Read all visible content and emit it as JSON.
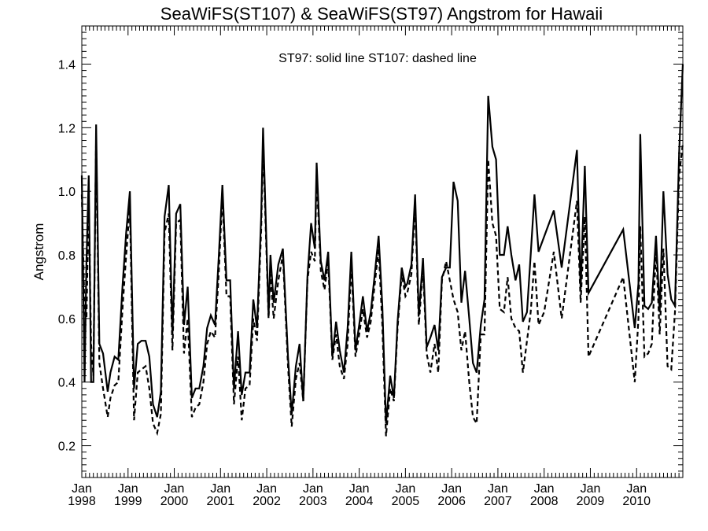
{
  "chart_data": {
    "type": "line",
    "title": "SeaWiFS(ST107) & SeaWiFS(ST97)  Angstrom for Hawaii",
    "annotation": "ST97: solid line   ST107: dashed line",
    "ylabel": "Angstrom",
    "xlabel": "",
    "xlim": [
      1998.0,
      2011.0
    ],
    "ylim": [
      0.1,
      1.52
    ],
    "yticks": [
      "0.2",
      "0.4",
      "0.6",
      "0.8",
      "1.0",
      "1.2",
      "1.4"
    ],
    "xticks": [
      {
        "top": "Jan",
        "bottom": "1998"
      },
      {
        "top": "Jan",
        "bottom": "1999"
      },
      {
        "top": "Jan",
        "bottom": "2000"
      },
      {
        "top": "Jan",
        "bottom": "2001"
      },
      {
        "top": "Jan",
        "bottom": "2002"
      },
      {
        "top": "Jan",
        "bottom": "2003"
      },
      {
        "top": "Jan",
        "bottom": "2004"
      },
      {
        "top": "Jan",
        "bottom": "2005"
      },
      {
        "top": "Jan",
        "bottom": "2006"
      },
      {
        "top": "Jan",
        "bottom": "2007"
      },
      {
        "top": "Jan",
        "bottom": "2008"
      },
      {
        "top": "Jan",
        "bottom": "2009"
      },
      {
        "top": "Jan",
        "bottom": "2010"
      }
    ],
    "grid": false,
    "series": [
      {
        "name": "ST97",
        "style": "solid",
        "color": "#000000",
        "points": [
          [
            1998.0,
            1.05
          ],
          [
            1998.06,
            0.4
          ],
          [
            1998.1,
            0.78
          ],
          [
            1998.15,
            1.05
          ],
          [
            1998.2,
            0.4
          ],
          [
            1998.25,
            0.4
          ],
          [
            1998.31,
            1.21
          ],
          [
            1998.38,
            0.52
          ],
          [
            1998.46,
            0.49
          ],
          [
            1998.56,
            0.37
          ],
          [
            1998.62,
            0.43
          ],
          [
            1998.71,
            0.48
          ],
          [
            1998.79,
            0.47
          ],
          [
            1998.88,
            0.7
          ],
          [
            1998.96,
            0.87
          ],
          [
            1999.04,
            1.0
          ],
          [
            1999.13,
            0.38
          ],
          [
            1999.21,
            0.52
          ],
          [
            1999.29,
            0.53
          ],
          [
            1999.38,
            0.53
          ],
          [
            1999.46,
            0.48
          ],
          [
            1999.54,
            0.33
          ],
          [
            1999.63,
            0.29
          ],
          [
            1999.71,
            0.37
          ],
          [
            1999.79,
            0.92
          ],
          [
            1999.88,
            1.02
          ],
          [
            1999.96,
            0.55
          ],
          [
            2000.04,
            0.93
          ],
          [
            2000.13,
            0.96
          ],
          [
            2000.21,
            0.58
          ],
          [
            2000.29,
            0.7
          ],
          [
            2000.38,
            0.35
          ],
          [
            2000.46,
            0.38
          ],
          [
            2000.54,
            0.38
          ],
          [
            2000.63,
            0.45
          ],
          [
            2000.71,
            0.57
          ],
          [
            2000.79,
            0.61
          ],
          [
            2000.88,
            0.58
          ],
          [
            2000.96,
            0.79
          ],
          [
            2001.04,
            1.02
          ],
          [
            2001.13,
            0.72
          ],
          [
            2001.21,
            0.72
          ],
          [
            2001.29,
            0.38
          ],
          [
            2001.38,
            0.56
          ],
          [
            2001.46,
            0.36
          ],
          [
            2001.54,
            0.43
          ],
          [
            2001.63,
            0.43
          ],
          [
            2001.71,
            0.66
          ],
          [
            2001.79,
            0.57
          ],
          [
            2001.88,
            0.92
          ],
          [
            2001.92,
            1.2
          ],
          [
            2002.04,
            0.61
          ],
          [
            2002.08,
            0.8
          ],
          [
            2002.15,
            0.65
          ],
          [
            2002.25,
            0.77
          ],
          [
            2002.35,
            0.82
          ],
          [
            2002.46,
            0.48
          ],
          [
            2002.54,
            0.3
          ],
          [
            2002.63,
            0.45
          ],
          [
            2002.71,
            0.52
          ],
          [
            2002.79,
            0.34
          ],
          [
            2002.88,
            0.73
          ],
          [
            2002.96,
            0.9
          ],
          [
            2003.04,
            0.82
          ],
          [
            2003.08,
            1.09
          ],
          [
            2003.17,
            0.78
          ],
          [
            2003.25,
            0.72
          ],
          [
            2003.33,
            0.81
          ],
          [
            2003.42,
            0.48
          ],
          [
            2003.5,
            0.59
          ],
          [
            2003.58,
            0.5
          ],
          [
            2003.67,
            0.43
          ],
          [
            2003.75,
            0.57
          ],
          [
            2003.83,
            0.81
          ],
          [
            2003.92,
            0.5
          ],
          [
            2004.0,
            0.58
          ],
          [
            2004.08,
            0.67
          ],
          [
            2004.17,
            0.56
          ],
          [
            2004.25,
            0.62
          ],
          [
            2004.33,
            0.73
          ],
          [
            2004.42,
            0.86
          ],
          [
            2004.5,
            0.64
          ],
          [
            2004.58,
            0.27
          ],
          [
            2004.67,
            0.42
          ],
          [
            2004.75,
            0.35
          ],
          [
            2004.83,
            0.59
          ],
          [
            2004.92,
            0.76
          ],
          [
            2005.0,
            0.7
          ],
          [
            2005.04,
            0.71
          ],
          [
            2005.13,
            0.77
          ],
          [
            2005.21,
            0.99
          ],
          [
            2005.29,
            0.61
          ],
          [
            2005.38,
            0.79
          ],
          [
            2005.46,
            0.51
          ],
          [
            2005.54,
            0.54
          ],
          [
            2005.63,
            0.58
          ],
          [
            2005.71,
            0.5
          ],
          [
            2005.79,
            0.73
          ],
          [
            2005.88,
            0.76
          ],
          [
            2005.96,
            0.76
          ],
          [
            2006.04,
            1.03
          ],
          [
            2006.13,
            0.97
          ],
          [
            2006.21,
            0.65
          ],
          [
            2006.29,
            0.75
          ],
          [
            2006.38,
            0.6
          ],
          [
            2006.46,
            0.46
          ],
          [
            2006.54,
            0.43
          ],
          [
            2006.63,
            0.58
          ],
          [
            2006.71,
            0.66
          ],
          [
            2006.79,
            1.3
          ],
          [
            2006.88,
            1.14
          ],
          [
            2006.96,
            1.1
          ],
          [
            2007.04,
            0.8
          ],
          [
            2007.13,
            0.8
          ],
          [
            2007.21,
            0.89
          ],
          [
            2007.29,
            0.8
          ],
          [
            2007.38,
            0.72
          ],
          [
            2007.46,
            0.77
          ],
          [
            2007.54,
            0.59
          ],
          [
            2007.63,
            0.62
          ],
          [
            2007.71,
            0.8
          ],
          [
            2007.79,
            0.99
          ],
          [
            2007.88,
            0.81
          ],
          [
            2008.21,
            0.94
          ],
          [
            2008.38,
            0.76
          ],
          [
            2008.71,
            1.13
          ],
          [
            2008.79,
            0.69
          ],
          [
            2008.88,
            1.08
          ],
          [
            2008.96,
            0.68
          ],
          [
            2009.71,
            0.88
          ],
          [
            2009.96,
            0.57
          ],
          [
            2010.04,
            0.71
          ],
          [
            2010.08,
            1.18
          ],
          [
            2010.17,
            0.64
          ],
          [
            2010.25,
            0.63
          ],
          [
            2010.33,
            0.65
          ],
          [
            2010.42,
            0.86
          ],
          [
            2010.5,
            0.62
          ],
          [
            2010.58,
            1.0
          ],
          [
            2010.67,
            0.74
          ],
          [
            2010.75,
            0.66
          ],
          [
            2010.83,
            0.64
          ],
          [
            2010.92,
            1.12
          ],
          [
            2011.0,
            1.4
          ]
        ]
      },
      {
        "name": "ST107",
        "style": "dashed",
        "color": "#000000",
        "points": [
          [
            1998.0,
            0.99
          ],
          [
            1998.06,
            0.62
          ],
          [
            1998.1,
            0.6
          ],
          [
            1998.15,
            0.97
          ],
          [
            1998.2,
            0.52
          ],
          [
            1998.25,
            0.42
          ],
          [
            1998.31,
            1.17
          ],
          [
            1998.38,
            0.46
          ],
          [
            1998.46,
            0.38
          ],
          [
            1998.56,
            0.29
          ],
          [
            1998.62,
            0.35
          ],
          [
            1998.71,
            0.39
          ],
          [
            1998.79,
            0.4
          ],
          [
            1998.88,
            0.63
          ],
          [
            1998.96,
            0.8
          ],
          [
            1999.04,
            0.95
          ],
          [
            1999.13,
            0.28
          ],
          [
            1999.21,
            0.43
          ],
          [
            1999.29,
            0.44
          ],
          [
            1999.38,
            0.45
          ],
          [
            1999.46,
            0.38
          ],
          [
            1999.54,
            0.27
          ],
          [
            1999.63,
            0.24
          ],
          [
            1999.71,
            0.3
          ],
          [
            1999.79,
            0.87
          ],
          [
            1999.88,
            0.93
          ],
          [
            1999.96,
            0.5
          ],
          [
            2000.04,
            0.9
          ],
          [
            2000.13,
            0.91
          ],
          [
            2000.21,
            0.49
          ],
          [
            2000.29,
            0.6
          ],
          [
            2000.38,
            0.29
          ],
          [
            2000.46,
            0.32
          ],
          [
            2000.54,
            0.33
          ],
          [
            2000.63,
            0.4
          ],
          [
            2000.71,
            0.52
          ],
          [
            2000.79,
            0.56
          ],
          [
            2000.88,
            0.54
          ],
          [
            2000.96,
            0.74
          ],
          [
            2001.04,
            0.99
          ],
          [
            2001.13,
            0.67
          ],
          [
            2001.21,
            0.67
          ],
          [
            2001.29,
            0.33
          ],
          [
            2001.38,
            0.48
          ],
          [
            2001.46,
            0.28
          ],
          [
            2001.54,
            0.38
          ],
          [
            2001.63,
            0.39
          ],
          [
            2001.71,
            0.6
          ],
          [
            2001.79,
            0.53
          ],
          [
            2001.88,
            0.88
          ],
          [
            2001.92,
            1.15
          ],
          [
            2002.04,
            0.6
          ],
          [
            2002.08,
            0.74
          ],
          [
            2002.15,
            0.6
          ],
          [
            2002.25,
            0.72
          ],
          [
            2002.35,
            0.8
          ],
          [
            2002.46,
            0.45
          ],
          [
            2002.54,
            0.26
          ],
          [
            2002.63,
            0.41
          ],
          [
            2002.71,
            0.46
          ],
          [
            2002.79,
            0.34
          ],
          [
            2002.88,
            0.72
          ],
          [
            2002.96,
            0.81
          ],
          [
            2003.04,
            0.78
          ],
          [
            2003.08,
            1.05
          ],
          [
            2003.17,
            0.75
          ],
          [
            2003.25,
            0.69
          ],
          [
            2003.33,
            0.78
          ],
          [
            2003.42,
            0.47
          ],
          [
            2003.5,
            0.55
          ],
          [
            2003.58,
            0.45
          ],
          [
            2003.67,
            0.41
          ],
          [
            2003.75,
            0.52
          ],
          [
            2003.83,
            0.77
          ],
          [
            2003.92,
            0.48
          ],
          [
            2004.0,
            0.55
          ],
          [
            2004.08,
            0.63
          ],
          [
            2004.17,
            0.54
          ],
          [
            2004.25,
            0.59
          ],
          [
            2004.33,
            0.7
          ],
          [
            2004.42,
            0.82
          ],
          [
            2004.5,
            0.58
          ],
          [
            2004.58,
            0.23
          ],
          [
            2004.67,
            0.38
          ],
          [
            2004.75,
            0.34
          ],
          [
            2004.83,
            0.57
          ],
          [
            2004.92,
            0.74
          ],
          [
            2005.0,
            0.67
          ],
          [
            2005.04,
            0.68
          ],
          [
            2005.13,
            0.74
          ],
          [
            2005.21,
            0.96
          ],
          [
            2005.29,
            0.58
          ],
          [
            2005.38,
            0.76
          ],
          [
            2005.46,
            0.49
          ],
          [
            2005.54,
            0.43
          ],
          [
            2005.63,
            0.52
          ],
          [
            2005.71,
            0.43
          ],
          [
            2005.79,
            0.72
          ],
          [
            2005.88,
            0.78
          ],
          [
            2005.96,
            0.72
          ],
          [
            2006.04,
            0.66
          ],
          [
            2006.13,
            0.62
          ],
          [
            2006.21,
            0.5
          ],
          [
            2006.29,
            0.56
          ],
          [
            2006.38,
            0.4
          ],
          [
            2006.46,
            0.29
          ],
          [
            2006.54,
            0.27
          ],
          [
            2006.63,
            0.55
          ],
          [
            2006.71,
            0.55
          ],
          [
            2006.79,
            1.1
          ],
          [
            2006.88,
            0.9
          ],
          [
            2006.96,
            0.86
          ],
          [
            2007.04,
            0.63
          ],
          [
            2007.13,
            0.62
          ],
          [
            2007.21,
            0.73
          ],
          [
            2007.29,
            0.6
          ],
          [
            2007.38,
            0.57
          ],
          [
            2007.46,
            0.56
          ],
          [
            2007.54,
            0.43
          ],
          [
            2007.63,
            0.53
          ],
          [
            2007.71,
            0.62
          ],
          [
            2007.79,
            0.78
          ],
          [
            2007.88,
            0.58
          ],
          [
            2008.0,
            0.62
          ],
          [
            2008.21,
            0.81
          ],
          [
            2008.38,
            0.6
          ],
          [
            2008.71,
            0.97
          ],
          [
            2008.79,
            0.65
          ],
          [
            2008.88,
            0.92
          ],
          [
            2008.96,
            0.48
          ],
          [
            2009.71,
            0.73
          ],
          [
            2009.96,
            0.4
          ],
          [
            2010.04,
            0.6
          ],
          [
            2010.08,
            0.89
          ],
          [
            2010.17,
            0.48
          ],
          [
            2010.25,
            0.49
          ],
          [
            2010.33,
            0.52
          ],
          [
            2010.42,
            0.82
          ],
          [
            2010.5,
            0.55
          ],
          [
            2010.58,
            0.82
          ],
          [
            2010.67,
            0.45
          ],
          [
            2010.75,
            0.44
          ],
          [
            2010.83,
            0.62
          ],
          [
            2010.92,
            1.05
          ],
          [
            2011.0,
            1.15
          ]
        ]
      }
    ]
  }
}
